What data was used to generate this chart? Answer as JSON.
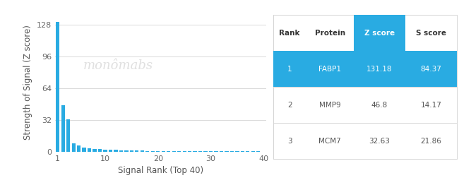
{
  "bar_color": "#29ABE2",
  "bar_values": [
    131.18,
    46.8,
    32.63,
    8.5,
    6.5,
    4.2,
    3.5,
    3.0,
    2.6,
    2.2,
    1.9,
    1.7,
    1.5,
    1.3,
    1.2,
    1.1,
    1.0,
    0.9,
    0.85,
    0.8,
    0.75,
    0.7,
    0.65,
    0.62,
    0.58,
    0.55,
    0.52,
    0.5,
    0.47,
    0.44,
    0.42,
    0.4,
    0.38,
    0.36,
    0.34,
    0.32,
    0.3,
    0.28,
    0.26,
    0.24
  ],
  "xlabel": "Signal Rank (Top 40)",
  "ylabel": "Strength of Signal (Z score)",
  "yticks": [
    0,
    32,
    64,
    96,
    128
  ],
  "xticks": [
    1,
    10,
    20,
    30,
    40
  ],
  "xlim": [
    0.5,
    40.5
  ],
  "ylim": [
    0,
    140
  ],
  "watermark": "monômabs",
  "table_header": [
    "Rank",
    "Protein",
    "Z score",
    "S score"
  ],
  "table_data": [
    [
      "1",
      "FABP1",
      "131.18",
      "84.37"
    ],
    [
      "2",
      "MMP9",
      "46.8",
      "14.17"
    ],
    [
      "3",
      "MCM7",
      "32.63",
      "21.86"
    ]
  ],
  "table_highlight_color": "#29ABE2",
  "table_highlight_text_color": "#ffffff",
  "table_normal_text_color": "#555555",
  "bg_color": "#ffffff",
  "grid_color": "#d5d5d5",
  "figsize": [
    6.5,
    2.62
  ],
  "dpi": 100
}
